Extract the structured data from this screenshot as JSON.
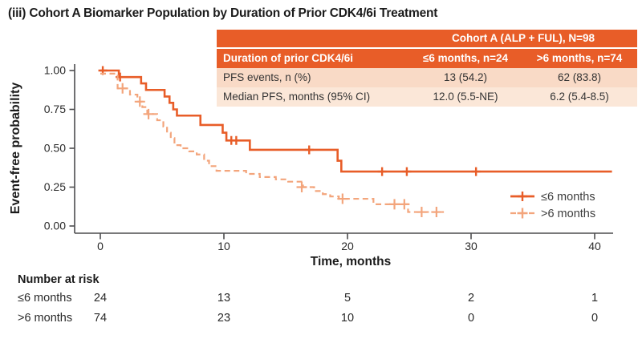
{
  "title": "(iii) Cohort A Biomarker Population by Duration of Prior CDK4/6i Treatment",
  "colors": {
    "solid_series": "#E85D28",
    "dashed_series": "#F3A57C",
    "table_header_bg": "#E85D28",
    "table_row1_bg": "#F9DAC6",
    "table_row2_bg": "#FBE7D8",
    "axis": "#4d4d4f",
    "tick_text": "#2a2a2a",
    "legend_text": "#3d3d3d"
  },
  "stats_table": {
    "span_header": "Cohort A (ALP + FUL), N=98",
    "col_header": [
      "Duration of prior CDK4/6i",
      "≤6 months, n=24",
      ">6 months, n=74"
    ],
    "rows": [
      {
        "label": "PFS events, n (%)",
        "values": [
          "13 (54.2)",
          "62 (83.8)"
        ]
      },
      {
        "label": "Median PFS, months (95% CI)",
        "values": [
          "12.0 (5.5-NE)",
          "6.2 (5.4-8.5)"
        ]
      }
    ]
  },
  "chart_data": {
    "type": "line",
    "subtype": "kaplan-meier-step",
    "xlabel": "Time, months",
    "ylabel": "Event-free probability",
    "xlim": [
      0,
      41.5
    ],
    "ylim": [
      0,
      1
    ],
    "xticks": [
      [
        0,
        "0"
      ],
      [
        10,
        "10"
      ],
      [
        20,
        "20"
      ],
      [
        30,
        "30"
      ],
      [
        40,
        "40"
      ]
    ],
    "yticks": [
      [
        0,
        "0.00"
      ],
      [
        0.25,
        "0.25"
      ],
      [
        0.5,
        "0.50"
      ],
      [
        0.75,
        "0.75"
      ],
      [
        1,
        "1.00"
      ]
    ],
    "grid": false,
    "legend_position": "inside-lower-right",
    "series": [
      {
        "name": "≤6 months",
        "style": "solid",
        "color": "#E85D28",
        "median_pfs_months": "12.0 (5.5-NE)",
        "steps": [
          [
            0,
            1.0
          ],
          [
            1.5,
            0.958
          ],
          [
            3.3,
            0.917
          ],
          [
            3.7,
            0.875
          ],
          [
            5.2,
            0.833
          ],
          [
            5.6,
            0.792
          ],
          [
            5.9,
            0.75
          ],
          [
            6.2,
            0.71
          ],
          [
            8.1,
            0.65
          ],
          [
            9.9,
            0.6
          ],
          [
            10.2,
            0.55
          ],
          [
            12.1,
            0.49
          ],
          [
            19.2,
            0.42
          ],
          [
            19.5,
            0.35
          ]
        ],
        "end_time": 41.4,
        "censors": [
          [
            0.2,
            1.0
          ],
          [
            1.6,
            0.958
          ],
          [
            10.6,
            0.55
          ],
          [
            11.0,
            0.55
          ],
          [
            16.9,
            0.49
          ],
          [
            22.8,
            0.35
          ],
          [
            24.8,
            0.35
          ],
          [
            30.4,
            0.35
          ]
        ]
      },
      {
        "name": ">6 months",
        "style": "dashed",
        "color": "#F3A57C",
        "median_pfs_months": "6.2 (5.4-8.5)",
        "steps": [
          [
            0,
            0.98
          ],
          [
            1.4,
            0.885
          ],
          [
            2.4,
            0.845
          ],
          [
            3.0,
            0.8
          ],
          [
            3.4,
            0.765
          ],
          [
            3.8,
            0.72
          ],
          [
            4.6,
            0.68
          ],
          [
            5.1,
            0.64
          ],
          [
            5.4,
            0.6
          ],
          [
            5.7,
            0.565
          ],
          [
            6.0,
            0.52
          ],
          [
            6.5,
            0.5
          ],
          [
            7.2,
            0.48
          ],
          [
            7.8,
            0.46
          ],
          [
            8.4,
            0.42
          ],
          [
            8.8,
            0.385
          ],
          [
            9.4,
            0.355
          ],
          [
            11.8,
            0.335
          ],
          [
            12.9,
            0.315
          ],
          [
            14.2,
            0.3
          ],
          [
            15.2,
            0.285
          ],
          [
            16.4,
            0.25
          ],
          [
            17.3,
            0.225
          ],
          [
            18.0,
            0.205
          ],
          [
            18.6,
            0.19
          ],
          [
            19.3,
            0.175
          ],
          [
            22.1,
            0.14
          ],
          [
            24.9,
            0.09
          ]
        ],
        "end_time": 27.8,
        "censors": [
          [
            1.8,
            0.885
          ],
          [
            3.2,
            0.8
          ],
          [
            3.9,
            0.72
          ],
          [
            16.3,
            0.25
          ],
          [
            19.6,
            0.175
          ],
          [
            23.8,
            0.14
          ],
          [
            24.6,
            0.14
          ],
          [
            26.0,
            0.09
          ],
          [
            27.2,
            0.09
          ]
        ]
      }
    ]
  },
  "risk_table": {
    "header": "Number at risk",
    "times": [
      0,
      10,
      20,
      30,
      40
    ],
    "rows": [
      {
        "label": "≤6 months",
        "counts": [
          "24",
          "13",
          "5",
          "2",
          "1"
        ]
      },
      {
        "label": ">6 months",
        "counts": [
          "74",
          "23",
          "10",
          "0",
          "0"
        ]
      }
    ]
  }
}
